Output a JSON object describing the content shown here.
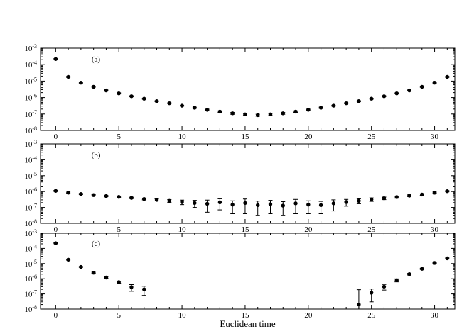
{
  "figure": {
    "xlabel": "Euclidean time",
    "bg_color": "#ffffff",
    "fg_color": "#000000"
  },
  "axes": {
    "xlim": [
      -1.2,
      31.6
    ],
    "xticks": [
      0,
      5,
      10,
      15,
      20,
      25,
      30
    ],
    "x_minor_step": 1,
    "ylog": true,
    "ylim": [
      1e-08,
      0.001
    ],
    "ytick_exponents": [
      -3,
      -4,
      -5,
      -6,
      -7,
      -8
    ],
    "ytick_base": "10",
    "grid": false,
    "legend": "none"
  },
  "chart_data": [
    {
      "type": "scatter",
      "panel_label": "(a)",
      "marker": "filled-circle",
      "ylog": true,
      "ylim": [
        1e-08,
        0.001
      ],
      "x": [
        0,
        1,
        2,
        3,
        4,
        5,
        6,
        7,
        8,
        9,
        10,
        11,
        12,
        13,
        14,
        15,
        16,
        17,
        18,
        19,
        20,
        21,
        22,
        23,
        24,
        25,
        26,
        27,
        28,
        29,
        30,
        31
      ],
      "y": [
        0.00022,
        1.8e-05,
        8e-06,
        4.5e-06,
        2.7e-06,
        1.8e-06,
        1.2e-06,
        8.5e-07,
        6e-07,
        4.5e-07,
        3.2e-07,
        2.4e-07,
        1.8e-07,
        1.4e-07,
        1.1e-07,
        9.5e-08,
        8.5e-08,
        9.5e-08,
        1.1e-07,
        1.4e-07,
        1.8e-07,
        2.4e-07,
        3.2e-07,
        4.5e-07,
        6e-07,
        8.5e-07,
        1.2e-06,
        1.8e-06,
        2.7e-06,
        4.5e-06,
        8e-06,
        1.8e-05
      ],
      "yerr": [
        1.5e-05,
        1.2e-06,
        5e-07,
        2.8e-07,
        1.7e-07,
        1.1e-07,
        7e-08,
        5e-08,
        3.6e-08,
        2.7e-08,
        2.2e-08,
        1.9e-08,
        1.7e-08,
        1.5e-08,
        1.4e-08,
        1.3e-08,
        1.2e-08,
        1.3e-08,
        1.4e-08,
        1.5e-08,
        1.7e-08,
        1.9e-08,
        2.2e-08,
        2.7e-08,
        3.6e-08,
        5e-08,
        7e-08,
        1.1e-07,
        1.7e-07,
        2.8e-07,
        5e-07,
        1.2e-06
      ]
    },
    {
      "type": "scatter",
      "panel_label": "(b)",
      "marker": "filled-circle",
      "ylog": true,
      "ylim": [
        1e-08,
        0.001
      ],
      "x": [
        0,
        1,
        2,
        3,
        4,
        5,
        6,
        7,
        8,
        9,
        10,
        11,
        12,
        13,
        14,
        15,
        16,
        17,
        18,
        19,
        20,
        21,
        22,
        23,
        24,
        25,
        26,
        27,
        28,
        29,
        30,
        31
      ],
      "y": [
        1.1e-06,
        8.5e-07,
        7e-07,
        6e-07,
        5.2e-07,
        4.6e-07,
        4e-07,
        3.4e-07,
        3e-07,
        2.6e-07,
        2.2e-07,
        1.9e-07,
        1.7e-07,
        2.1e-07,
        1.5e-07,
        1.9e-07,
        1.4e-07,
        1.6e-07,
        1.3e-07,
        1.8e-07,
        1.5e-07,
        1.4e-07,
        1.8e-07,
        2.2e-07,
        2.6e-07,
        3.2e-07,
        3.8e-07,
        4.5e-07,
        5.5e-07,
        6.5e-07,
        8.5e-07,
        1.05e-06
      ],
      "yerr": [
        9e-08,
        7e-08,
        6e-08,
        5e-08,
        4.5e-08,
        4e-08,
        4e-08,
        4e-08,
        4.5e-08,
        5e-08,
        7e-08,
        9e-08,
        1.2e-07,
        1.4e-07,
        1.1e-07,
        1.5e-07,
        1.1e-07,
        1.2e-07,
        1e-07,
        1.4e-07,
        1.1e-07,
        1e-07,
        1.2e-07,
        1e-07,
        9e-08,
        8e-08,
        7e-08,
        7e-08,
        7e-08,
        7e-08,
        8e-08,
        9e-08
      ]
    },
    {
      "type": "scatter",
      "panel_label": "(c)",
      "marker": "filled-circle",
      "ylog": true,
      "ylim": [
        1e-08,
        0.001
      ],
      "x": [
        0,
        1,
        2,
        3,
        4,
        5,
        6,
        7,
        24,
        25,
        26,
        27,
        28,
        29,
        30,
        31
      ],
      "y": [
        0.00022,
        1.8e-05,
        6e-06,
        2.5e-06,
        1.2e-06,
        6e-07,
        2.8e-07,
        2e-07,
        2e-08,
        1.2e-07,
        3e-07,
        8e-07,
        2e-06,
        4.5e-06,
        1.1e-05,
        2.2e-05
      ],
      "yerr": [
        1.5e-05,
        1.2e-06,
        4e-07,
        2e-07,
        1.2e-07,
        9e-08,
        1.3e-07,
        1.2e-07,
        1.7e-07,
        9e-08,
        1.2e-07,
        1.8e-07,
        2.5e-07,
        4e-07,
        7e-07,
        1.5e-06
      ]
    }
  ]
}
